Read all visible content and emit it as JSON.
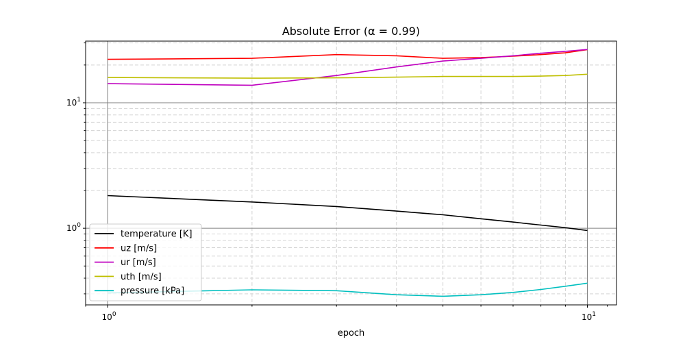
{
  "chart_data": {
    "type": "line",
    "title": "Absolute Error (α = 0.99)",
    "xlabel": "epoch",
    "ylabel": "",
    "x_scale": "log",
    "y_scale": "log",
    "xlim": [
      0.9,
      11.5
    ],
    "ylim": [
      0.245,
      31
    ],
    "x": [
      1,
      2,
      3,
      4,
      5,
      6,
      7,
      8,
      9,
      10
    ],
    "x_major_ticks": [
      {
        "value": 1,
        "base": "10",
        "exp": "0"
      },
      {
        "value": 10,
        "base": "10",
        "exp": "1"
      }
    ],
    "y_major_ticks": [
      {
        "value": 1,
        "base": "10",
        "exp": "0"
      },
      {
        "value": 10,
        "base": "10",
        "exp": "1"
      }
    ],
    "grid": true,
    "legend_position": "lower-left",
    "series": [
      {
        "name": "temperature [K]",
        "color": "#000000",
        "values": [
          1.82,
          1.62,
          1.49,
          1.37,
          1.28,
          1.19,
          1.12,
          1.06,
          1.01,
          0.96
        ]
      },
      {
        "name": "uz [m/s]",
        "color": "#ff0000",
        "values": [
          22.2,
          22.6,
          24.2,
          23.7,
          22.6,
          22.9,
          23.5,
          24.2,
          25.0,
          26.5
        ]
      },
      {
        "name": "ur [m/s]",
        "color": "#bf00bf",
        "values": [
          14.2,
          13.8,
          16.5,
          19.3,
          21.5,
          22.6,
          23.7,
          24.8,
          25.7,
          26.6
        ]
      },
      {
        "name": "uth [m/s]",
        "color": "#bfbf00",
        "values": [
          15.9,
          15.7,
          15.8,
          16.0,
          16.2,
          16.2,
          16.2,
          16.3,
          16.5,
          16.9
        ]
      },
      {
        "name": "pressure [kPa]",
        "color": "#00bfbf",
        "values": [
          0.305,
          0.323,
          0.318,
          0.295,
          0.287,
          0.295,
          0.308,
          0.325,
          0.345,
          0.365
        ]
      }
    ]
  }
}
